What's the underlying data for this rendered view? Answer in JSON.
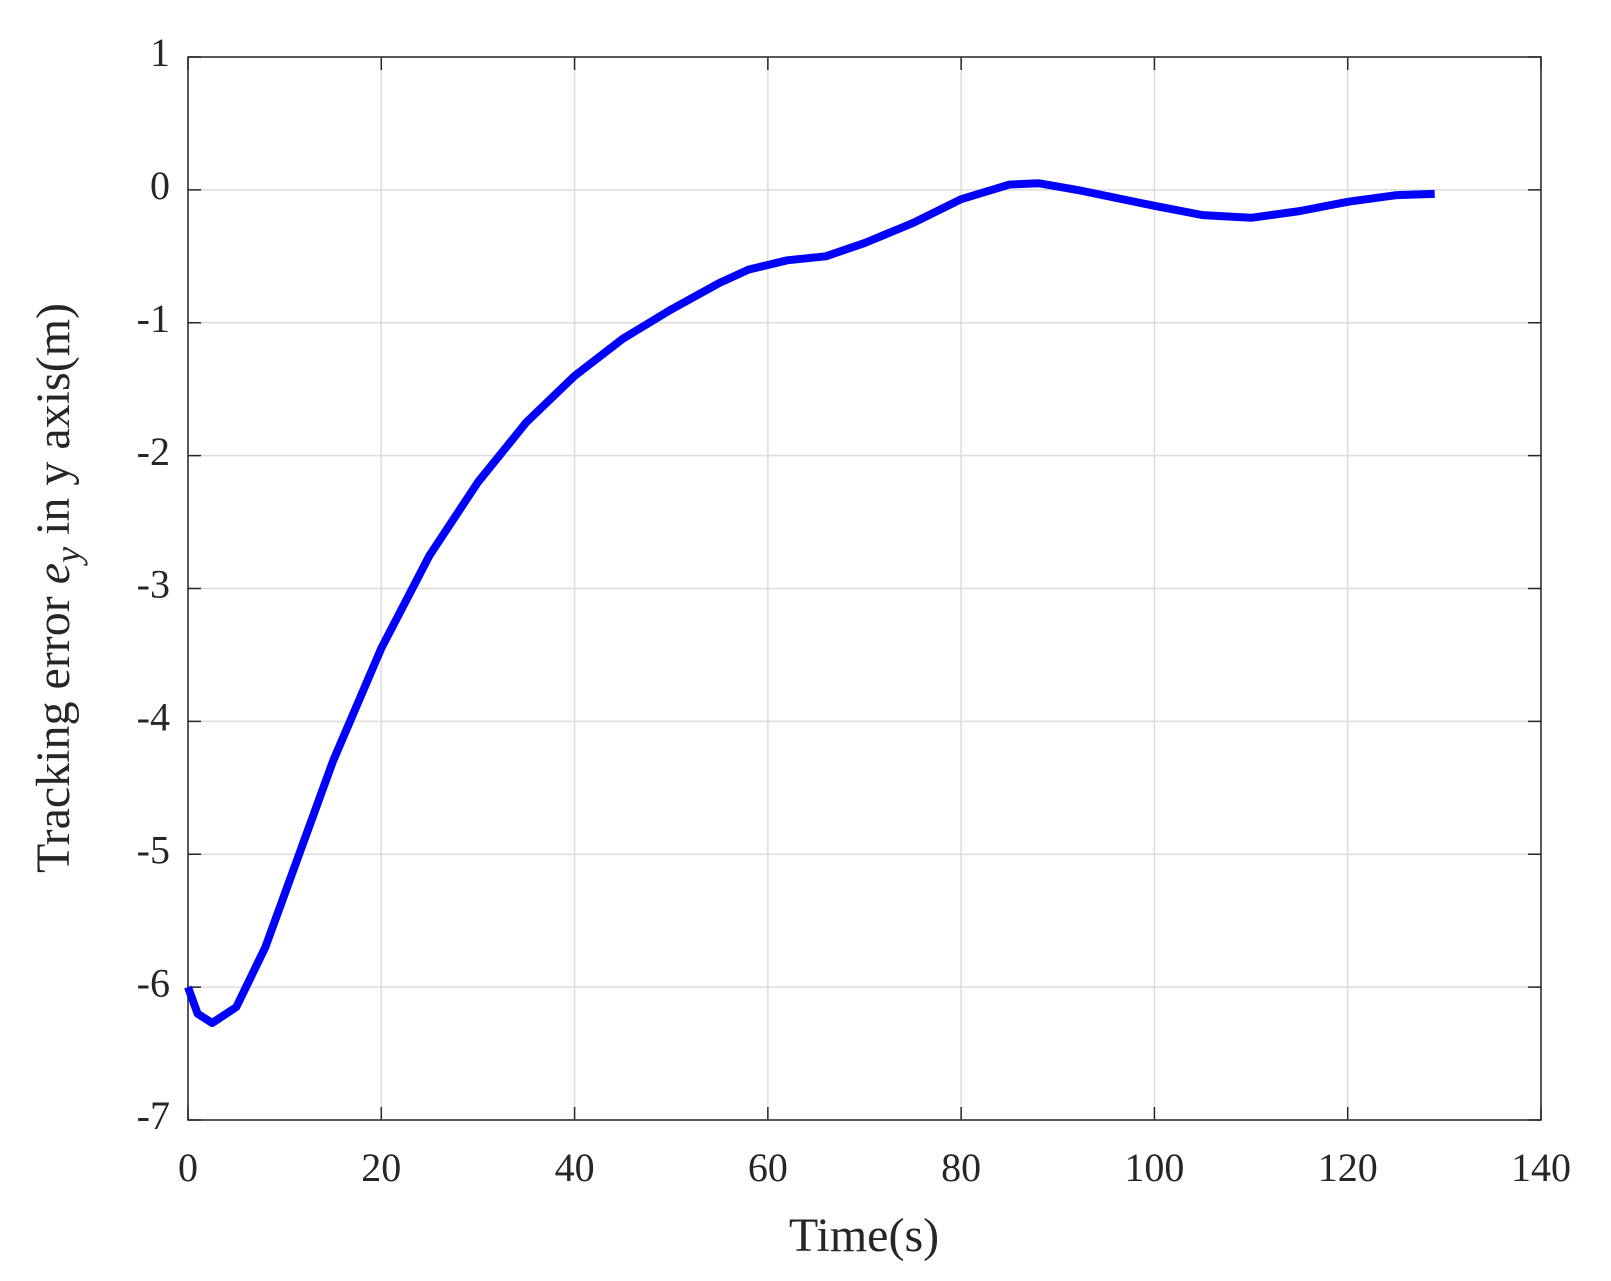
{
  "chart_data": {
    "type": "line",
    "xlabel": "Time(s)",
    "ylabel": {
      "before": "Tracking error ",
      "symbol": "e",
      "subscript": "y",
      "after": " in y axis(m)"
    },
    "x": [
      0,
      1,
      2.5,
      5,
      8,
      10,
      15,
      20,
      25,
      30,
      35,
      40,
      45,
      50,
      55,
      58,
      62,
      66,
      70,
      75,
      80,
      85,
      88,
      92,
      100,
      105,
      110,
      115,
      120,
      125,
      129
    ],
    "values": [
      -6.0,
      -6.2,
      -6.27,
      -6.15,
      -5.7,
      -5.3,
      -4.3,
      -3.45,
      -2.75,
      -2.2,
      -1.75,
      -1.4,
      -1.12,
      -0.9,
      -0.7,
      -0.6,
      -0.53,
      -0.5,
      -0.4,
      -0.25,
      -0.07,
      0.04,
      0.05,
      0.0,
      -0.12,
      -0.19,
      -0.21,
      -0.16,
      -0.09,
      -0.04,
      -0.03
    ],
    "color": "#0000ff",
    "xlim": [
      0,
      140
    ],
    "xticks": [
      0,
      20,
      40,
      60,
      80,
      100,
      120,
      140
    ],
    "ylim": [
      -7,
      1
    ],
    "yticks": [
      -7,
      -6,
      -5,
      -4,
      -3,
      -2,
      -1,
      0,
      1
    ],
    "grid": true
  }
}
